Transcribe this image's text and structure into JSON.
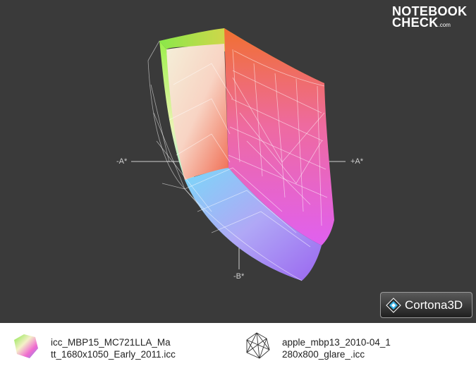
{
  "brand": {
    "line1": "NOTEBOOK",
    "line2": "CHECK",
    "line3": ".com"
  },
  "axes": {
    "neg_a": "-A*",
    "pos_a": "+A*",
    "neg_b": "-B*"
  },
  "viewer": {
    "name": "Cortona3D",
    "icon": "cortona-logo-icon"
  },
  "legend": [
    {
      "line1": "icc_MBP15_MC721LLA_Ma",
      "line2": "tt_1680x1050_Early_2011.icc",
      "style": "solid",
      "icon": "solid-gamut-icon"
    },
    {
      "line1": "apple_mbp13_2010-04_1",
      "line2": "280x800_glare_.icc",
      "style": "wireframe",
      "icon": "wireframe-gamut-icon"
    }
  ],
  "colors": {
    "background": "#3a3a3a",
    "wireframe": "#ffffff",
    "axis": "#cfcfcf"
  }
}
